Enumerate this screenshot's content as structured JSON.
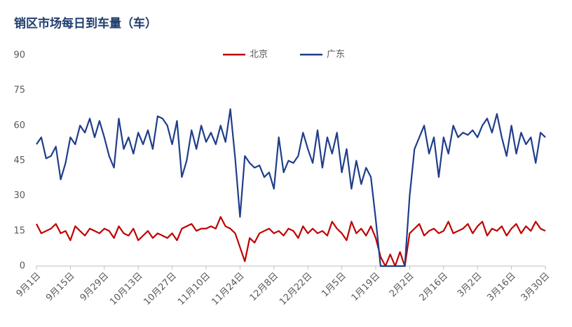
{
  "chart_data": {
    "type": "line",
    "title": "销区市场每日到车量（车）",
    "categories": [
      "9月1日",
      null,
      null,
      null,
      null,
      null,
      null,
      "9月15日",
      null,
      null,
      null,
      null,
      null,
      null,
      "9月29日",
      null,
      null,
      null,
      null,
      null,
      null,
      "10月13日",
      null,
      null,
      null,
      null,
      null,
      null,
      "10月27日",
      null,
      null,
      null,
      null,
      null,
      null,
      "11月10日",
      null,
      null,
      null,
      null,
      null,
      null,
      "11月24日",
      null,
      null,
      null,
      null,
      null,
      null,
      "12月8日",
      null,
      null,
      null,
      null,
      null,
      null,
      "12月22日",
      null,
      null,
      null,
      null,
      null,
      null,
      "1月5日",
      null,
      null,
      null,
      null,
      null,
      null,
      "1月19日",
      null,
      null,
      null,
      null,
      null,
      null,
      "2月2日",
      null,
      null,
      null,
      null,
      null,
      null,
      "2月16日",
      null,
      null,
      null,
      null,
      null,
      null,
      "3月2日",
      null,
      null,
      null,
      null,
      null,
      null,
      "3月16日",
      null,
      null,
      null,
      null,
      null,
      null,
      "3月30日"
    ],
    "series": [
      {
        "name": "北京",
        "color": "#c00000",
        "values": [
          18,
          14,
          15,
          16,
          18,
          14,
          15,
          11,
          17,
          15,
          13,
          16,
          15,
          14,
          16,
          15,
          12,
          17,
          14,
          13,
          16,
          11,
          13,
          15,
          12,
          14,
          13,
          12,
          14,
          11,
          16,
          17,
          18,
          15,
          16,
          16,
          17,
          16,
          21,
          17,
          16,
          14,
          8,
          2,
          12,
          10,
          14,
          15,
          16,
          14,
          15,
          13,
          16,
          15,
          12,
          17,
          14,
          16,
          14,
          15,
          13,
          19,
          16,
          14,
          11,
          19,
          14,
          16,
          13,
          17,
          12,
          4,
          0,
          5,
          0,
          6,
          0,
          14,
          16,
          18,
          13,
          15,
          16,
          14,
          15,
          19,
          14,
          15,
          16,
          18,
          14,
          17,
          19,
          13,
          16,
          15,
          17,
          13,
          16,
          18,
          14,
          17,
          15,
          19,
          16,
          15
        ]
      },
      {
        "name": "广东",
        "color": "#1f3d8a",
        "values": [
          52,
          55,
          46,
          47,
          51,
          37,
          44,
          55,
          52,
          60,
          57,
          63,
          55,
          62,
          55,
          47,
          42,
          63,
          50,
          55,
          48,
          57,
          52,
          58,
          50,
          64,
          63,
          60,
          52,
          62,
          38,
          45,
          58,
          50,
          60,
          53,
          57,
          52,
          60,
          53,
          67,
          46,
          21,
          47,
          44,
          42,
          43,
          38,
          40,
          33,
          55,
          40,
          45,
          44,
          47,
          57,
          50,
          44,
          58,
          42,
          55,
          48,
          57,
          40,
          50,
          33,
          45,
          35,
          42,
          38,
          20,
          0,
          0,
          0,
          0,
          0,
          0,
          30,
          50,
          55,
          60,
          48,
          55,
          38,
          55,
          48,
          60,
          55,
          57,
          56,
          58,
          55,
          60,
          63,
          57,
          65,
          55,
          47,
          60,
          48,
          57,
          52,
          55,
          44,
          57,
          55
        ]
      }
    ],
    "ylim": [
      0,
      90
    ],
    "yticks": [
      0,
      15,
      30,
      45,
      60,
      75,
      90
    ],
    "grid": false,
    "legend": "top"
  }
}
